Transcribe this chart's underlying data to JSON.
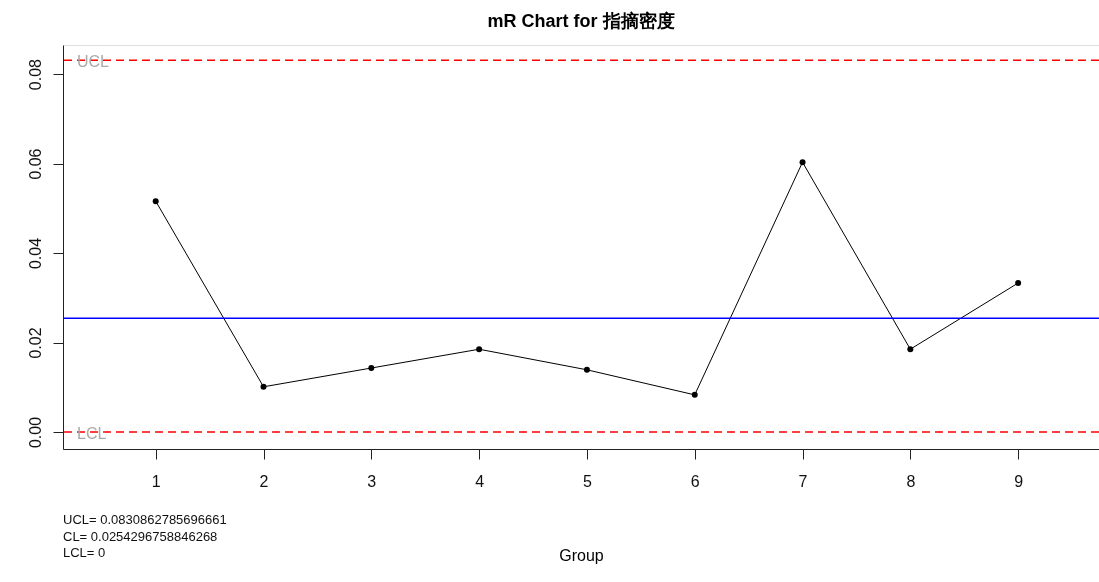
{
  "chart_data": {
    "type": "line",
    "title": "mR Chart for 指摘密度",
    "xlabel": "Group",
    "x": [
      1,
      2,
      3,
      4,
      5,
      6,
      7,
      8,
      9
    ],
    "series": [
      {
        "color": "#000000",
        "values": [
          0.0516,
          0.0101,
          0.0143,
          0.0185,
          0.0139,
          0.0083,
          0.0603,
          0.0185,
          0.0333
        ]
      }
    ],
    "xlim": [
      0.14,
      9.75
    ],
    "xticks": [
      1,
      2,
      3,
      4,
      5,
      6,
      7,
      8,
      9
    ],
    "ylim": [
      -0.0038,
      0.0865
    ],
    "yticks": [
      {
        "value": 0,
        "label": "0.00"
      },
      {
        "value": 0.02,
        "label": "0.02"
      },
      {
        "value": 0.04,
        "label": "0.04"
      },
      {
        "value": 0.06,
        "label": "0.06"
      },
      {
        "value": 0.08,
        "label": "0.08"
      }
    ],
    "ref_lines": [
      {
        "axis": "y",
        "value": 0.0830862785696661,
        "label": "UCL",
        "color": "#ff0000",
        "line_style": "dashed"
      },
      {
        "axis": "y",
        "value": 0.0254296758846268,
        "color": "#0000ff",
        "line_style": "solid"
      },
      {
        "axis": "y",
        "value": 0,
        "label": "LCL",
        "color": "#ff0000",
        "line_style": "dashed"
      }
    ],
    "annotations": [
      "UCL= 0.0830862785696661",
      "CL= 0.0254296758846268",
      "LCL= 0"
    ],
    "marker": "circle",
    "line_style": "solid"
  }
}
